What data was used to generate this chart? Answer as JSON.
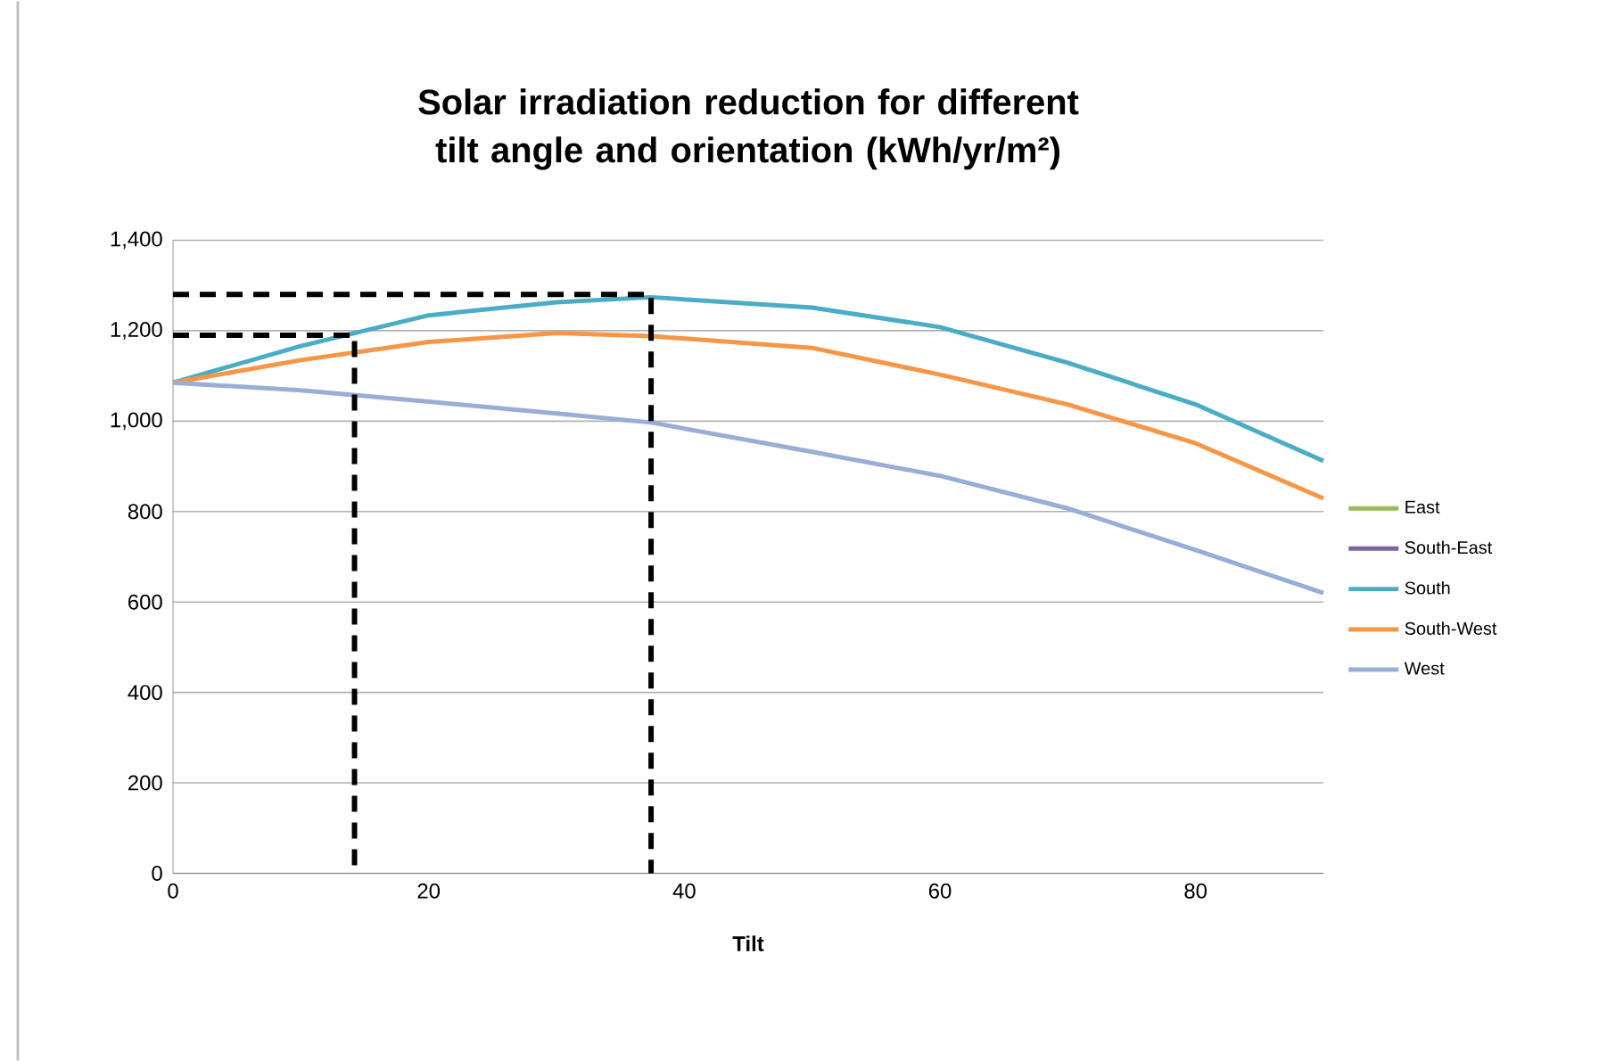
{
  "chart_data": {
    "type": "line",
    "title": "Solar irradiation reduction for different tilt angle and orientation (kWh/yr/m²)",
    "xlabel": "Tilt",
    "x": [
      0,
      10,
      20,
      30,
      37.4,
      50,
      60,
      70,
      80,
      90
    ],
    "xlim": [
      0,
      90
    ],
    "xticks": [
      0,
      20,
      40,
      60,
      80
    ],
    "ylim": [
      0,
      1400
    ],
    "yticks": [
      0,
      200,
      400,
      600,
      800,
      {
        "value": 1000,
        "label": "1,000"
      },
      {
        "value": 1200,
        "label": "1,200"
      },
      {
        "value": 1400,
        "label": "1,400"
      }
    ],
    "grid": "y",
    "legend": "right",
    "series": [
      {
        "name": "East",
        "color": "#9bbb59",
        "values": [
          null,
          null,
          null,
          null,
          null,
          null,
          null,
          null,
          null,
          null
        ]
      },
      {
        "name": "South-East",
        "color": "#8064a2",
        "values": [
          null,
          null,
          null,
          null,
          null,
          null,
          null,
          null,
          null,
          null
        ]
      },
      {
        "name": "South",
        "color": "#4bacc6",
        "values": [
          1085,
          1166,
          1234,
          1263,
          1274,
          1251,
          1208,
          1129,
          1037,
          912
        ]
      },
      {
        "name": "South-West",
        "color": "#f79646",
        "values": [
          1085,
          1135,
          1175,
          1195,
          1188,
          1162,
          1103,
          1037,
          951,
          829
        ]
      },
      {
        "name": "West",
        "color": "#98aed6",
        "values": [
          1085,
          1068,
          1043,
          1017,
          997,
          932,
          879,
          807,
          715,
          620
        ]
      },
      {
        "color": "#000000",
        "line_style": "dashed",
        "x": [
          0,
          14.2,
          14.2
        ],
        "values": [
          1190,
          1190,
          0
        ]
      },
      {
        "color": "#000000",
        "line_style": "dashed",
        "x": [
          0,
          37.4,
          37.4
        ],
        "values": [
          1280,
          1280,
          0
        ]
      }
    ]
  }
}
